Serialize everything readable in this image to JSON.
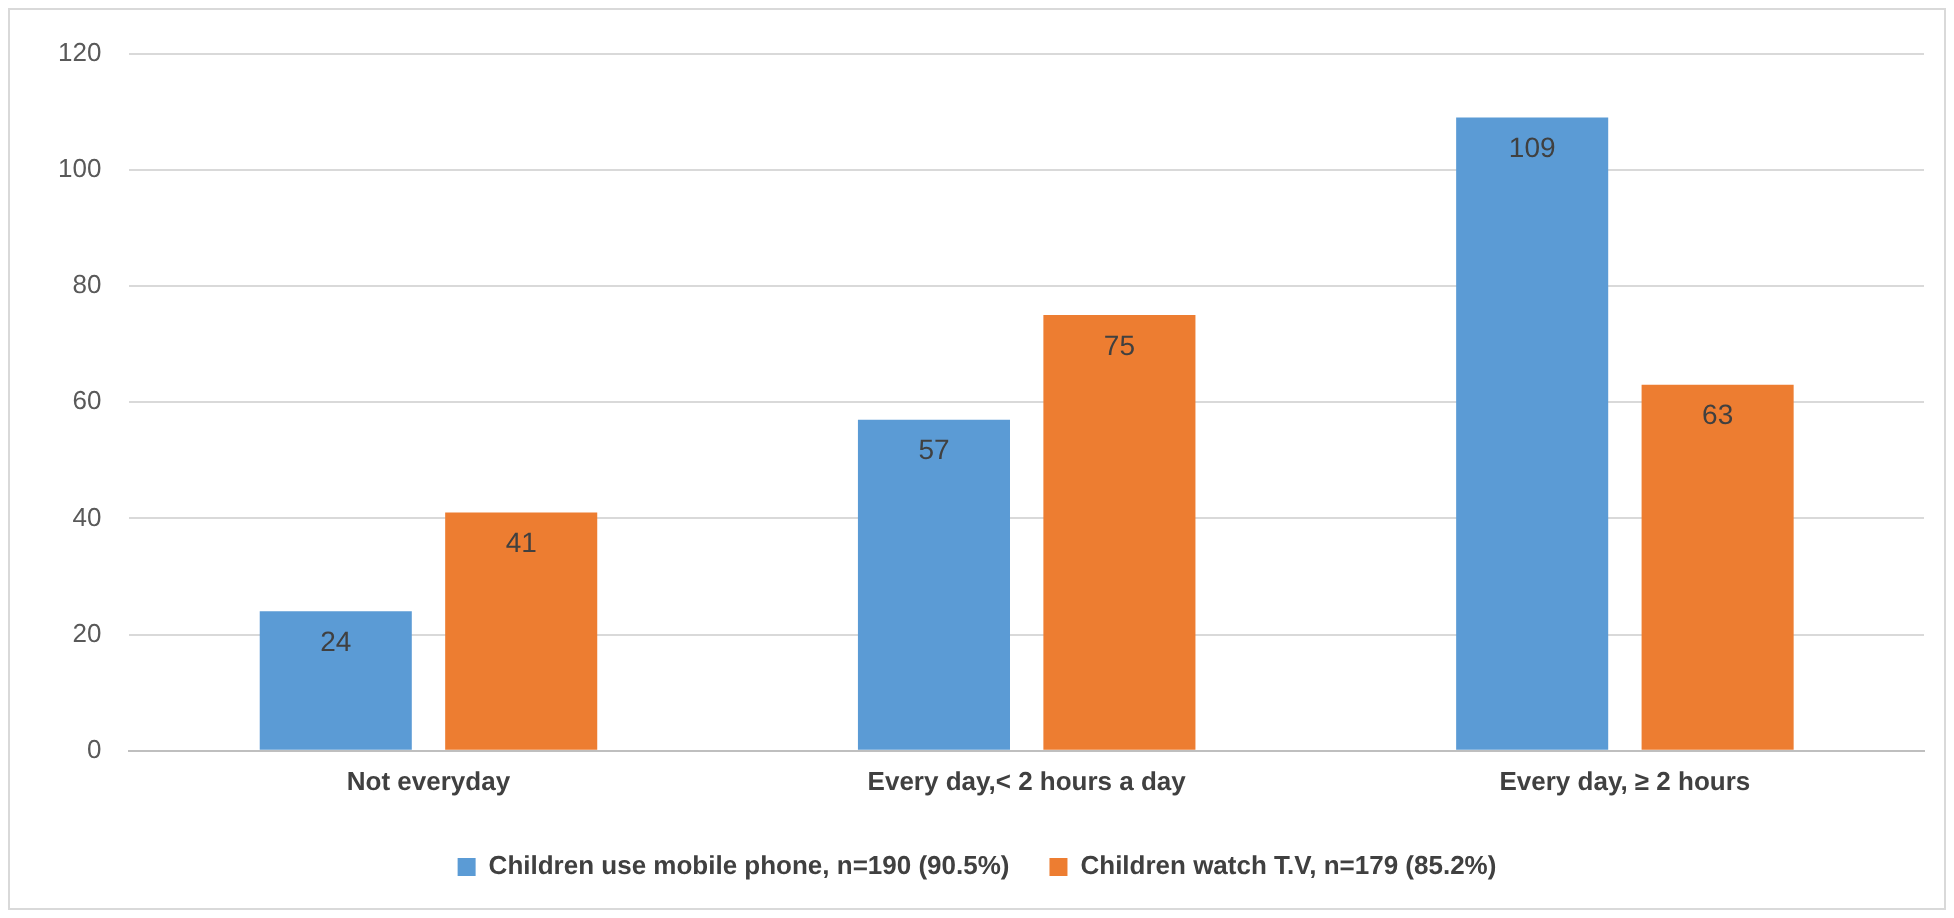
{
  "chart_data": {
    "type": "bar",
    "categories": [
      "Not everyday",
      "Every day,< 2 hours a day",
      "Every day, ≥ 2 hours"
    ],
    "series": [
      {
        "name": "Children use mobile phone, n=190 (90.5%)",
        "color": "#5b9bd5",
        "values": [
          24,
          57,
          109
        ]
      },
      {
        "name": "Children watch T.V, n=179 (85.2%)",
        "color": "#ed7d31",
        "values": [
          41,
          75,
          63
        ]
      }
    ],
    "ylim": [
      0,
      120
    ],
    "yticks": [
      0,
      20,
      40,
      60,
      80,
      100,
      120
    ],
    "grid": "y",
    "legend": "bottom",
    "data_labels": true
  }
}
